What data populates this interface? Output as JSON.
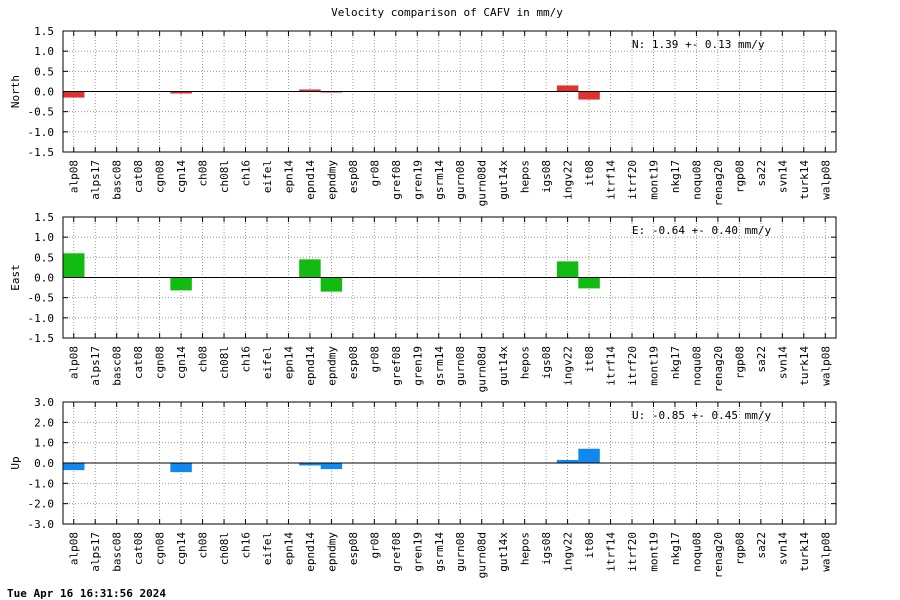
{
  "title": "Velocity comparison of CAFV in mm/y",
  "footer": "Tue Apr 16 16:31:56 2024",
  "chart_data": [
    {
      "type": "bar",
      "ylabel": "North",
      "annotation": "N:   1.39 +-  0.13 mm/y",
      "ylim": [
        -1.5,
        1.5
      ],
      "yticks": [
        "1.5",
        "1.0",
        "0.5",
        "0.0",
        "-0.5",
        "-1.0",
        "-1.5"
      ],
      "grid": true,
      "color": "#e03030",
      "categories": [
        "alp08",
        "alps17",
        "basc08",
        "cat08",
        "cgn08",
        "cgn14",
        "ch08",
        "ch08l",
        "ch16",
        "eifel",
        "epn14",
        "epnd14",
        "epndmy",
        "esp08",
        "gr08",
        "gref08",
        "gren19",
        "gsrm14",
        "gurn08",
        "gurn08d",
        "gut14x",
        "hepos",
        "igs08",
        "ingv22",
        "it08",
        "itrf14",
        "itrf20",
        "mont19",
        "nkg17",
        "noqu08",
        "renag20",
        "rgp08",
        "sa22",
        "svn14",
        "turk14",
        "walp08"
      ],
      "values": [
        -0.15,
        0,
        0,
        0,
        0,
        -0.05,
        0,
        0,
        0,
        0,
        0,
        0.05,
        -0.02,
        0,
        0,
        0,
        0,
        0,
        0,
        0,
        0,
        0,
        0,
        0.15,
        -0.2,
        0,
        0,
        0,
        0,
        0,
        0,
        0,
        0,
        0,
        0,
        0
      ]
    },
    {
      "type": "bar",
      "ylabel": "East",
      "annotation": "E:  -0.64 +-  0.40 mm/y",
      "ylim": [
        -1.5,
        1.5
      ],
      "yticks": [
        "1.5",
        "1.0",
        "0.5",
        "0.0",
        "-0.5",
        "-1.0",
        "-1.5"
      ],
      "grid": true,
      "color": "#11bb11",
      "categories": [
        "alp08",
        "alps17",
        "basc08",
        "cat08",
        "cgn08",
        "cgn14",
        "ch08",
        "ch08l",
        "ch16",
        "eifel",
        "epn14",
        "epnd14",
        "epndmy",
        "esp08",
        "gr08",
        "gref08",
        "gren19",
        "gsrm14",
        "gurn08",
        "gurn08d",
        "gut14x",
        "hepos",
        "igs08",
        "ingv22",
        "it08",
        "itrf14",
        "itrf20",
        "mont19",
        "nkg17",
        "noqu08",
        "renag20",
        "rgp08",
        "sa22",
        "svn14",
        "turk14",
        "walp08"
      ],
      "values": [
        0.6,
        0,
        0,
        0,
        0,
        -0.32,
        0,
        0,
        0,
        0,
        0,
        0.45,
        -0.35,
        0,
        0,
        0,
        0,
        0,
        0,
        0,
        0,
        0,
        0,
        0.4,
        -0.27,
        0,
        0,
        0,
        0,
        0,
        0,
        0,
        0,
        0,
        0,
        0
      ]
    },
    {
      "type": "bar",
      "ylabel": "Up",
      "annotation": "U:  -0.85 +-  0.45 mm/y",
      "ylim": [
        -3.0,
        3.0
      ],
      "yticks": [
        "3.0",
        "2.0",
        "1.0",
        "0.0",
        "-1.0",
        "-2.0",
        "-3.0"
      ],
      "grid": true,
      "color": "#1188ee",
      "categories": [
        "alp08",
        "alps17",
        "basc08",
        "cat08",
        "cgn08",
        "cgn14",
        "ch08",
        "ch08l",
        "ch16",
        "eifel",
        "epn14",
        "epnd14",
        "epndmy",
        "esp08",
        "gr08",
        "gref08",
        "gren19",
        "gsrm14",
        "gurn08",
        "gurn08d",
        "gut14x",
        "hepos",
        "igs08",
        "ingv22",
        "it08",
        "itrf14",
        "itrf20",
        "mont19",
        "nkg17",
        "noqu08",
        "renag20",
        "rgp08",
        "sa22",
        "svn14",
        "turk14",
        "walp08"
      ],
      "values": [
        -0.35,
        0,
        0,
        0,
        0,
        -0.45,
        0,
        0,
        0,
        0,
        0,
        -0.12,
        -0.3,
        0,
        0,
        0,
        0,
        0,
        0,
        0,
        0,
        0,
        0,
        0.15,
        0.7,
        0,
        0,
        0,
        0,
        0,
        0,
        0,
        0,
        0,
        0,
        0
      ]
    }
  ]
}
